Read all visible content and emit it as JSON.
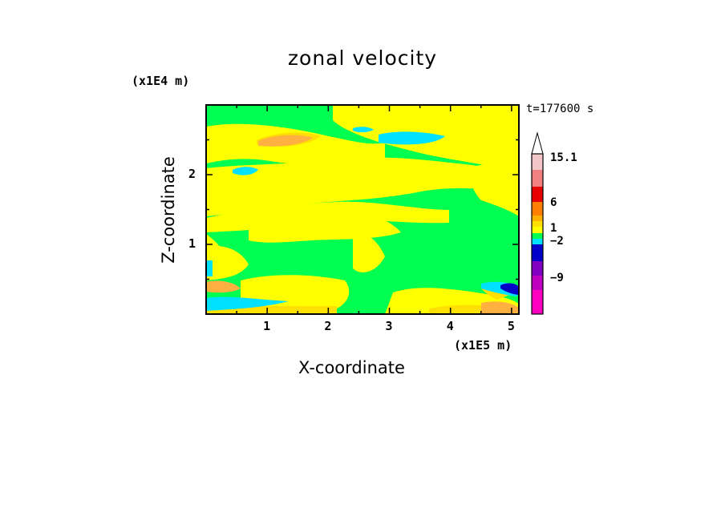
{
  "chart_data": {
    "type": "heatmap",
    "title": "zonal velocity",
    "xlabel": "X-coordinate",
    "ylabel": "Z-coordinate",
    "x_multiplier": "(x1E5 m)",
    "y_multiplier": "(x1E4 m)",
    "time_label": "t=177600 s",
    "xlim": [
      0,
      5.12
    ],
    "ylim": [
      0,
      3.0
    ],
    "x_ticks": [
      "1",
      "2",
      "3",
      "4",
      "5"
    ],
    "y_ticks": [
      "1",
      "2"
    ],
    "colorbar": {
      "labels": [
        "15.1",
        "6",
        "1",
        "-2",
        "-9"
      ],
      "displayed_labels": [
        "15.1",
        "6",
        "1",
        "−2",
        "−9"
      ],
      "colors": [
        "#f2c6c6",
        "#f28080",
        "#e60000",
        "#ff8000",
        "#ffb000",
        "#ffe000",
        "#ffff00",
        "#00ff50",
        "#00e0ff",
        "#0000c8",
        "#8000c0",
        "#c000c0",
        "#ff00c0"
      ]
    },
    "field_colors": {
      "background": "#00ff50",
      "positive_weak": "#ffff00",
      "positive_mid": "#ffe000",
      "positive_strong": "#ffb040",
      "negative_weak": "#00e0ff",
      "negative_strong": "#0000c8"
    },
    "grid": false
  }
}
